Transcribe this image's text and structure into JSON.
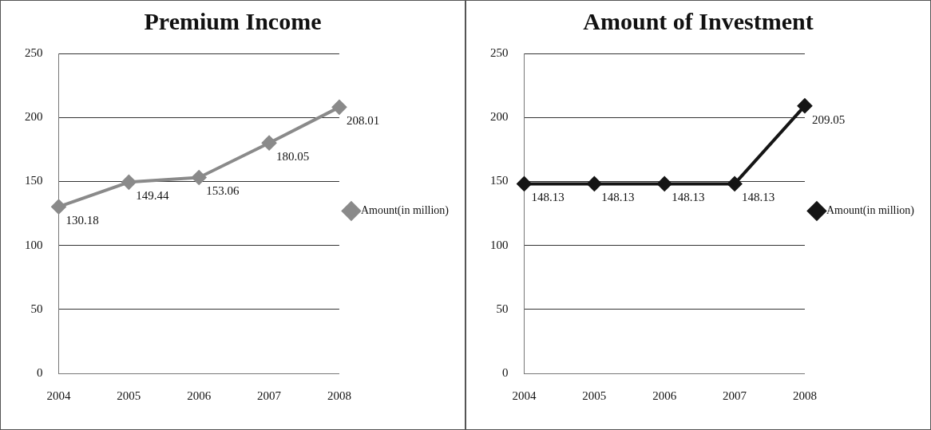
{
  "chart_data": [
    {
      "type": "line",
      "title": "Premium Income",
      "categories": [
        "2004",
        "2005",
        "2006",
        "2007",
        "2008"
      ],
      "series": [
        {
          "name": "Amount(in million)",
          "color": "#8a8a8a",
          "values": [
            130.18,
            149.44,
            153.06,
            180.05,
            208.01
          ]
        }
      ],
      "ylim": [
        0,
        250
      ],
      "yticks": [
        0,
        50,
        100,
        150,
        200,
        250
      ],
      "grid": "y",
      "legend": "right",
      "marker": "diamond",
      "data_labels": true
    },
    {
      "type": "line",
      "title": "Amount of Investment",
      "categories": [
        "2004",
        "2005",
        "2006",
        "2007",
        "2008"
      ],
      "series": [
        {
          "name": "Amount(in million)",
          "color": "#151515",
          "values": [
            148.13,
            148.13,
            148.13,
            148.13,
            209.05
          ]
        }
      ],
      "ylim": [
        0,
        250
      ],
      "yticks": [
        0,
        50,
        100,
        150,
        200,
        250
      ],
      "grid": "y",
      "legend": "right",
      "marker": "diamond",
      "data_labels": true
    }
  ]
}
